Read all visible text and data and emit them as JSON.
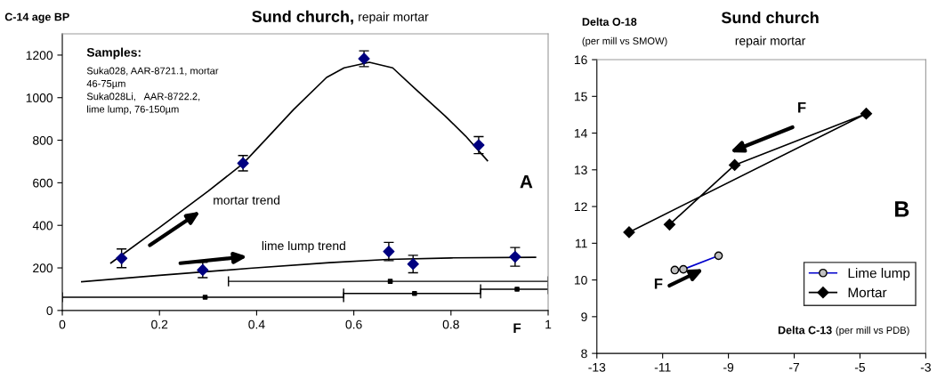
{
  "chart_data": [
    {
      "type": "scatter",
      "title": "Sund church,",
      "subtitle": "repair mortar",
      "ylabel": "C-14 age BP",
      "xlabel": "F",
      "xlim": [
        0,
        1
      ],
      "xticks": [
        0,
        0.2,
        0.4,
        0.6,
        0.8,
        1
      ],
      "ylim": [
        0,
        1300
      ],
      "yticks": [
        0,
        200,
        400,
        600,
        800,
        1000,
        1200
      ],
      "grid": false,
      "legend": false,
      "annotations": [
        "Samples:",
        "Suka028, AAR-8721.1, mortar\n46-75µm\nSuka028Li,   AAR-8722.2,\nlime lump, 76-150µm",
        "mortar trend",
        "lime lump trend",
        "A"
      ],
      "series": [
        {
          "color": "#000080",
          "marker": "diamond",
          "x": [
            0.122,
            0.372,
            0.621,
            0.857
          ],
          "values": [
            245,
            692,
            1183,
            777
          ],
          "errors": [
            44,
            36,
            37,
            40
          ]
        },
        {
          "color": "#000080",
          "marker": "diamond",
          "x": [
            0.289,
            0.672,
            0.722,
            0.932
          ],
          "values": [
            190,
            277,
            218,
            252
          ],
          "errors": [
            36,
            43,
            41,
            44
          ]
        },
        {
          "type": "line",
          "color": "#000000",
          "marker": "none",
          "x": [
            0.1,
            0.2,
            0.3,
            0.372,
            0.421,
            0.476,
            0.544,
            0.58,
            0.632,
            0.68,
            0.727,
            0.788,
            0.83,
            0.875
          ],
          "values": [
            223,
            390,
            560,
            690,
            809,
            944,
            1095,
            1140,
            1166,
            1140,
            1040,
            914,
            820,
            704
          ]
        },
        {
          "type": "line",
          "color": "#000000",
          "marker": "none",
          "x": [
            0.04,
            0.2,
            0.385,
            0.55,
            0.67,
            0.8,
            0.974
          ],
          "values": [
            135,
            165,
            198,
            225,
            240,
            247,
            250
          ]
        },
        {
          "color": "#000000",
          "marker": "square",
          "x": [
            0.294,
            0.725,
            0.936,
            0.675
          ],
          "values": [
            62,
            80,
            100,
            137
          ],
          "xerrors": [
            [
              0,
              0.579
            ],
            [
              0.579,
              0.861
            ],
            [
              0.861,
              1.0
            ],
            [
              0.342,
              1.0
            ]
          ]
        }
      ]
    },
    {
      "type": "line",
      "title": "Sund church",
      "subtitle": "repair mortar",
      "ylabel": "Delta O-18\n(per mill vs SMOW)",
      "xlabel": "Delta C-13 (per mill vs PDB)",
      "xlim": [
        -13,
        -3
      ],
      "xticks": [
        -13,
        -11,
        -9,
        -7,
        -5,
        -3
      ],
      "ylim": [
        8,
        16
      ],
      "yticks": [
        8,
        9,
        10,
        11,
        12,
        13,
        14,
        15,
        16
      ],
      "grid": false,
      "legend": "bottom right",
      "annotations": [
        "F",
        "F",
        "B"
      ],
      "series": [
        {
          "name": "Lime lump",
          "color": "#0000cc",
          "colors": [
            "#c0c0c0",
            "#c0c0c0",
            "#c0c0c0"
          ],
          "marker": "circle",
          "x": [
            -10.63,
            -10.37,
            -9.3
          ],
          "values": [
            10.27,
            10.29,
            10.66
          ]
        },
        {
          "name": "Mortar",
          "color": "#000000",
          "marker": "diamond",
          "x": [
            -12.02,
            -4.81,
            -8.81,
            -10.79
          ],
          "values": [
            11.3,
            14.53,
            13.13,
            11.51
          ]
        }
      ]
    }
  ]
}
